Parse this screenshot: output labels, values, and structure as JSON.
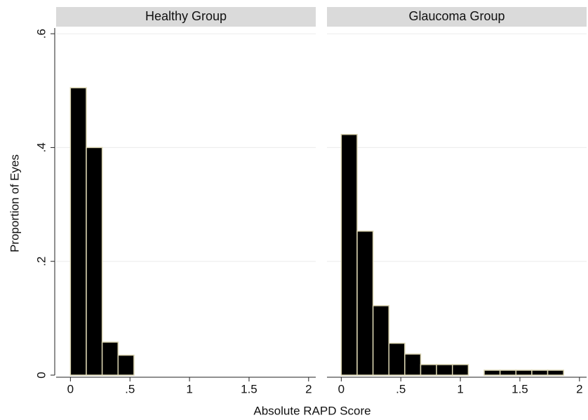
{
  "chart_data": {
    "type": "histogram",
    "xlabel": "Absolute RAPD Score",
    "ylabel": "Proportion of Eyes",
    "color": "#000000",
    "edge_color": "#d9d3b0",
    "grid": true,
    "xlim": [
      -0.12,
      2.06
    ],
    "xticks": [
      0,
      {
        "value": 0.5,
        "label": ".5"
      },
      1,
      1.5,
      2
    ],
    "ylim": [
      0,
      0.61
    ],
    "yticks": [
      0,
      {
        "value": 0.2,
        "label": ".2"
      },
      {
        "value": 0.4,
        "label": ".4"
      },
      {
        "value": 0.6,
        "label": ".6"
      }
    ],
    "panels": [
      {
        "title": "Healthy Group",
        "bins": [
          0,
          0.1333,
          0.2667,
          0.4,
          0.5333
        ],
        "values": [
          0.505,
          0.4,
          0.058,
          0.035
        ]
      },
      {
        "title": "Glaucoma Group",
        "bins": [
          0,
          0.1333,
          0.2667,
          0.4,
          0.5333,
          0.6667,
          0.8,
          0.9333,
          1.0667,
          1.2,
          1.3333,
          1.4667,
          1.6,
          1.7333,
          1.8667
        ],
        "values": [
          0.423,
          0.253,
          0.122,
          0.056,
          0.037,
          0.0185,
          0.0185,
          0.0185,
          0,
          0.0086,
          0.0086,
          0.0086,
          0.0086,
          0.0086
        ]
      }
    ]
  }
}
